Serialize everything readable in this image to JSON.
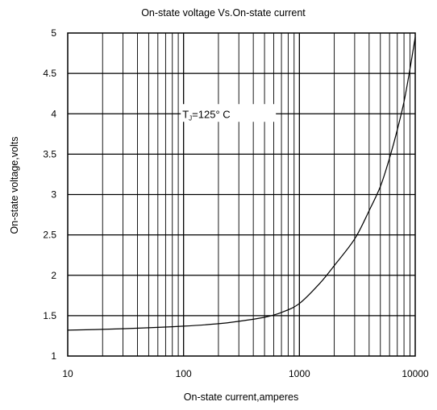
{
  "chart_data": {
    "type": "line",
    "title": "On-state voltage  Vs.On-state current",
    "xlabel": "On-state current,amperes",
    "ylabel": "On-state voltage,volts",
    "x_scale": "log",
    "xlim": [
      10,
      10000
    ],
    "ylim": [
      1,
      5
    ],
    "x_ticks": [
      10,
      100,
      1000,
      10000
    ],
    "x_tick_labels": [
      "10",
      "100",
      "1000",
      "10000"
    ],
    "y_ticks": [
      1,
      1.5,
      2,
      2.5,
      3,
      3.5,
      4,
      4.5,
      5
    ],
    "y_tick_labels": [
      "1",
      "1.5",
      "2",
      "2.5",
      "3",
      "3.5",
      "4",
      "4.5",
      "5"
    ],
    "grid": true,
    "annotation": {
      "prefix": "T",
      "subscript": "J",
      "suffix": "=125°  C",
      "x": 300,
      "y": 4
    },
    "series": [
      {
        "x": [
          10,
          20,
          50,
          100,
          200,
          300,
          500,
          700,
          1000,
          1500,
          2000,
          3000,
          4000,
          5000,
          6000,
          7000,
          8000,
          9000,
          10000
        ],
        "y": [
          1.32,
          1.33,
          1.35,
          1.37,
          1.4,
          1.43,
          1.48,
          1.54,
          1.65,
          1.9,
          2.12,
          2.45,
          2.8,
          3.1,
          3.45,
          3.8,
          4.15,
          4.55,
          4.95
        ]
      }
    ]
  }
}
